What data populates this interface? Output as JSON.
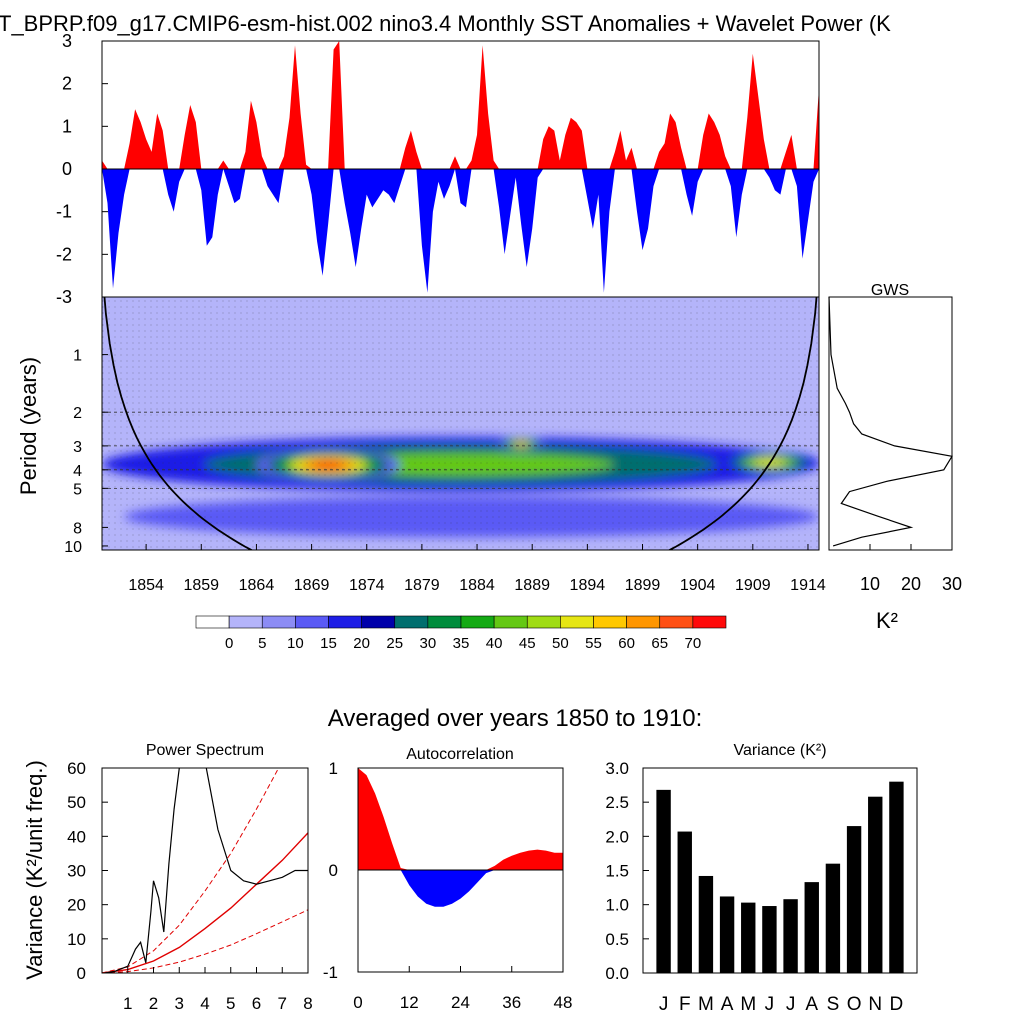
{
  "title": "T_BPRP.f09_g17.CMIP6-esm-hist.002 nino3.4 Monthly SST Anomalies + Wavelet Power (K",
  "chart_data": [
    {
      "id": "sst_anomaly",
      "type": "area",
      "title": "nino3.4 Monthly SST Anomalies",
      "ylim": [
        -3,
        3
      ],
      "yticks": [
        "3",
        "2",
        "1",
        "0",
        "-1",
        "-2",
        "-3"
      ],
      "x": [
        1850.0,
        1850.5,
        1851.0,
        1851.5,
        1852.0,
        1852.5,
        1853.0,
        1853.5,
        1854.0,
        1854.5,
        1855.0,
        1855.5,
        1856.0,
        1856.5,
        1857.0,
        1857.5,
        1858.0,
        1858.5,
        1859.0,
        1859.5,
        1860.0,
        1860.5,
        1861.0,
        1861.5,
        1862.0,
        1862.5,
        1863.0,
        1863.5,
        1864.0,
        1864.5,
        1865.0,
        1865.5,
        1866.0,
        1866.5,
        1867.0,
        1867.5,
        1868.0,
        1868.5,
        1869.0,
        1869.5,
        1870.0,
        1870.5,
        1871.0,
        1871.5,
        1872.0,
        1872.5,
        1873.0,
        1873.5,
        1874.0,
        1874.5,
        1875.0,
        1875.5,
        1876.0,
        1876.5,
        1877.0,
        1877.5,
        1878.0,
        1878.5,
        1879.0,
        1879.5,
        1880.0,
        1880.5,
        1881.0,
        1881.5,
        1882.0,
        1882.5,
        1883.0,
        1883.5,
        1884.0,
        1884.5,
        1885.0,
        1885.5,
        1886.0,
        1886.5,
        1887.0,
        1887.5,
        1888.0,
        1888.5,
        1889.0,
        1889.5,
        1890.0,
        1890.5,
        1891.0,
        1891.5,
        1892.0,
        1892.5,
        1893.0,
        1893.5,
        1894.0,
        1894.5,
        1895.0,
        1895.5,
        1896.0,
        1896.5,
        1897.0,
        1897.5,
        1898.0,
        1898.5,
        1899.0,
        1899.5,
        1900.0,
        1900.5,
        1901.0,
        1901.5,
        1902.0,
        1902.5,
        1903.0,
        1903.5,
        1904.0,
        1904.5,
        1905.0,
        1905.5,
        1906.0,
        1906.5,
        1907.0,
        1907.5,
        1908.0,
        1908.5,
        1909.0,
        1909.5,
        1910.0,
        1910.5,
        1911.0,
        1911.5,
        1912.0,
        1912.5,
        1913.0,
        1913.5,
        1914.0,
        1914.5,
        1915.0
      ],
      "values": [
        0.2,
        -0.8,
        -2.8,
        -1.5,
        -0.6,
        0.6,
        1.4,
        1.1,
        0.7,
        0.4,
        1.3,
        0.9,
        -0.6,
        -1.0,
        -0.3,
        0.8,
        1.5,
        1.1,
        -0.5,
        -1.8,
        -1.6,
        -0.6,
        0.2,
        -0.4,
        -0.8,
        -0.7,
        0.4,
        1.6,
        1.1,
        0.3,
        -0.4,
        -0.6,
        -0.8,
        0.3,
        1.2,
        2.9,
        1.3,
        0.1,
        -0.6,
        -1.7,
        -2.5,
        -1.3,
        2.8,
        3.0,
        -0.8,
        -1.5,
        -2.3,
        -1.4,
        -0.6,
        -0.9,
        -0.7,
        -0.5,
        -0.6,
        -0.8,
        -0.4,
        0.5,
        0.9,
        0.4,
        -1.8,
        -2.9,
        -1.0,
        -0.3,
        -0.7,
        -0.4,
        0.3,
        -0.8,
        -0.9,
        0.2,
        0.8,
        2.9,
        1.3,
        0.2,
        -0.9,
        -2.0,
        -1.1,
        -0.2,
        -1.3,
        -2.3,
        -1.4,
        -0.2,
        0.7,
        1.0,
        0.9,
        0.2,
        0.8,
        1.2,
        1.1,
        0.9,
        -0.7,
        -1.4,
        -0.6,
        -2.9,
        -1.0,
        0.4,
        0.9,
        0.2,
        0.5,
        -1.0,
        -1.9,
        -1.4,
        -0.4,
        0.4,
        0.6,
        1.3,
        1.1,
        0.5,
        -0.6,
        -1.1,
        -0.3,
        0.8,
        1.3,
        1.1,
        0.8,
        0.3,
        -0.4,
        -1.6,
        -0.6,
        1.2,
        2.7,
        1.7,
        0.7,
        -0.2,
        -0.5,
        -0.6,
        0.4,
        0.8,
        -0.4,
        -2.1,
        -1.2,
        -0.3,
        1.9
      ]
    },
    {
      "id": "wavelet_power",
      "type": "heatmap",
      "ylabel": "Period (years)",
      "yticks": [
        "1",
        "2",
        "3",
        "4",
        "5",
        "8",
        "10"
      ],
      "xticks": [
        "1854",
        "1859",
        "1864",
        "1869",
        "1874",
        "1879",
        "1884",
        "1889",
        "1894",
        "1899",
        "1904",
        "1909",
        "1914"
      ],
      "colorbar_labels": [
        "0",
        "5",
        "10",
        "15",
        "20",
        "25",
        "30",
        "35",
        "40",
        "45",
        "50",
        "55",
        "60",
        "65",
        "70"
      ],
      "colors": [
        "#FFFFFF",
        "#B4B4FA",
        "#8C8CF5",
        "#5A5AF5",
        "#1E1EE6",
        "#0000AA",
        "#006E6E",
        "#008C3C",
        "#14AA14",
        "#64C814",
        "#A0DC14",
        "#E6E614",
        "#FFC800",
        "#FF9600",
        "#FF5014",
        "#FF0A0A"
      ],
      "cone_of_influence": true,
      "blobs": [
        {
          "label": "band 3-4y",
          "year": [
            1850,
            1915
          ],
          "period": [
            2.7,
            5.2
          ],
          "power": 40
        },
        {
          "label": "band 6-8y",
          "year": [
            1852,
            1915
          ],
          "period": [
            5.5,
            9
          ],
          "power": 12
        },
        {
          "label": "peak 1869",
          "year": [
            1864,
            1877
          ],
          "period": [
            3.1,
            4.6
          ],
          "power": 72
        },
        {
          "label": "peak 1888",
          "year": [
            1886,
            1890
          ],
          "period": [
            2.7,
            3.2
          ],
          "power": 58
        },
        {
          "label": "peak 1912",
          "year": [
            1906,
            1915
          ],
          "period": [
            3.2,
            4.2
          ],
          "power": 52
        }
      ]
    },
    {
      "id": "gws",
      "type": "line",
      "title": "GWS",
      "xlabel": "K²",
      "xlim": [
        0,
        30
      ],
      "xticks": [
        "10",
        "20",
        "30"
      ],
      "period": [
        0.5,
        1,
        1.5,
        1.8,
        2,
        2.3,
        2.6,
        3,
        3.4,
        4,
        4.6,
        5.2,
        6,
        7,
        8,
        9,
        10
      ],
      "values": [
        0,
        0.5,
        2,
        4,
        5,
        6,
        8,
        16,
        30,
        28,
        14,
        5,
        3,
        12,
        20,
        8,
        1
      ]
    },
    {
      "id": "power_spectrum",
      "type": "line",
      "title": "Power Spectrum",
      "ylabel": "Variance (K²/unit freq.)",
      "ylim": [
        0,
        60
      ],
      "xlim": [
        0,
        8
      ],
      "yticks": [
        "0",
        "10",
        "20",
        "30",
        "40",
        "50",
        "60"
      ],
      "xticks": [
        "1",
        "2",
        "3",
        "4",
        "5",
        "6",
        "7",
        "8"
      ],
      "x": [
        0.1,
        0.5,
        1.0,
        1.3,
        1.5,
        1.7,
        1.9,
        2.0,
        2.2,
        2.4,
        2.6,
        2.8,
        3.0,
        3.2,
        3.5,
        4.0,
        4.5,
        5.0,
        5.5,
        6.0,
        6.5,
        7.0,
        7.5,
        8.0
      ],
      "values": [
        0,
        0.5,
        2,
        7,
        9,
        3,
        18,
        27,
        22,
        12,
        32,
        48,
        60,
        68,
        66,
        62,
        42,
        30,
        27,
        26,
        27,
        28,
        30,
        30
      ],
      "red_noise": {
        "x": [
          0,
          1,
          2,
          3,
          4,
          5,
          6,
          7,
          8
        ],
        "values": [
          0,
          1.0,
          3.5,
          7.5,
          13,
          19,
          26,
          33,
          41
        ]
      },
      "lower_bound": {
        "x": [
          0,
          1,
          2,
          3,
          4,
          5,
          6,
          7,
          8
        ],
        "values": [
          0,
          0.4,
          1.5,
          3.2,
          5.5,
          8.2,
          11.5,
          15,
          18.5
        ]
      },
      "upper_bound": {
        "x": [
          0,
          1,
          2,
          3,
          4,
          5,
          6,
          7
        ],
        "values": [
          0,
          1.8,
          6.5,
          14,
          24,
          35,
          48,
          62
        ]
      }
    },
    {
      "id": "autocorrelation",
      "type": "area",
      "title": "Autocorrelation",
      "ylim": [
        -1,
        1
      ],
      "xlim": [
        0,
        48
      ],
      "yticks": [
        "1",
        "0",
        "-1"
      ],
      "xticks": [
        "0",
        "12",
        "24",
        "36",
        "48"
      ],
      "x": [
        0,
        2,
        4,
        6,
        8,
        10,
        12,
        14,
        16,
        18,
        20,
        22,
        24,
        26,
        28,
        30,
        32,
        34,
        36,
        38,
        40,
        42,
        44,
        46,
        48
      ],
      "values": [
        1.0,
        0.93,
        0.75,
        0.52,
        0.26,
        0.02,
        -0.15,
        -0.26,
        -0.33,
        -0.36,
        -0.36,
        -0.33,
        -0.28,
        -0.21,
        -0.12,
        -0.03,
        0.04,
        0.1,
        0.14,
        0.17,
        0.19,
        0.2,
        0.19,
        0.17,
        0.17
      ]
    },
    {
      "id": "variance",
      "type": "bar",
      "title": "Variance (K²)",
      "ylim": [
        0,
        3
      ],
      "yticks": [
        "3.0",
        "2.5",
        "2.0",
        "1.5",
        "1.0",
        "0.5",
        "0.0"
      ],
      "categories": [
        "J",
        "F",
        "M",
        "A",
        "M",
        "J",
        "J",
        "A",
        "S",
        "O",
        "N",
        "D"
      ],
      "values": [
        2.68,
        2.07,
        1.42,
        1.12,
        1.03,
        0.98,
        1.08,
        1.33,
        1.6,
        2.15,
        2.58,
        2.8
      ]
    }
  ],
  "labels": {
    "averaged": "Averaged over years 1850 to 1910:",
    "period_axis": "Period (years)",
    "variance_axis": "Variance (K²/unit freq.)"
  }
}
